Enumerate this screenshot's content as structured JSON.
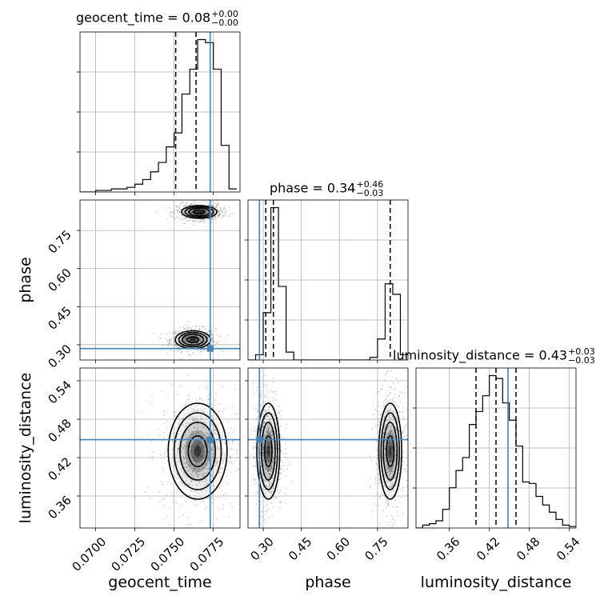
{
  "chart_data": {
    "type": "corner",
    "parameters": [
      "geocent_time",
      "phase",
      "luminosity_distance"
    ],
    "grid": true,
    "truth": {
      "geocent_time": 0.0773,
      "phase": 0.285,
      "luminosity_distance": 0.448,
      "color": "#4682b4"
    },
    "panels": {
      "geocent_time": {
        "title": {
          "name": "geocent_time",
          "value": "0.08",
          "plus": "+0.00",
          "minus": "−0.00"
        },
        "xlim": [
          0.069,
          0.0792
        ],
        "quantiles": [
          0.0751,
          0.0764,
          0.0773
        ],
        "hist_edges": [
          0.069,
          0.0695,
          0.07,
          0.0705,
          0.071,
          0.0715,
          0.072,
          0.0725,
          0.073,
          0.0735,
          0.074,
          0.0745,
          0.075,
          0.0755,
          0.076,
          0.0765,
          0.077,
          0.0775,
          0.078,
          0.0785,
          0.079
        ],
        "hist_counts": [
          0,
          0,
          1,
          1,
          2,
          2,
          3,
          5,
          8,
          13,
          19,
          29,
          38,
          63,
          79,
          98,
          96,
          79,
          30,
          2
        ]
      },
      "phase": {
        "title": {
          "name": "phase",
          "value": "0.34",
          "plus": "+0.46",
          "minus": "−0.03"
        },
        "xlim": [
          0.24,
          0.87
        ],
        "quantiles": [
          0.31,
          0.34,
          0.8
        ],
        "hist_edges": [
          0.24,
          0.27,
          0.3,
          0.33,
          0.36,
          0.39,
          0.42,
          0.45,
          0.48,
          0.51,
          0.54,
          0.57,
          0.6,
          0.63,
          0.66,
          0.69,
          0.72,
          0.75,
          0.78,
          0.81,
          0.84,
          0.87
        ],
        "hist_counts": [
          0,
          2,
          18,
          58,
          28,
          3,
          0,
          0,
          0,
          0,
          0,
          0,
          0,
          0,
          0,
          0,
          1,
          8,
          29,
          25,
          2
        ]
      },
      "luminosity_distance": {
        "title": {
          "name": "luminosity_distance",
          "value": "0.43",
          "plus": "+0.03",
          "minus": "−0.03"
        },
        "xlim": [
          0.31,
          0.55
        ],
        "quantiles": [
          0.4,
          0.43,
          0.46
        ],
        "hist_edges": [
          0.31,
          0.32,
          0.33,
          0.34,
          0.35,
          0.36,
          0.37,
          0.38,
          0.39,
          0.4,
          0.41,
          0.42,
          0.43,
          0.44,
          0.45,
          0.46,
          0.47,
          0.48,
          0.49,
          0.5,
          0.51,
          0.52,
          0.53,
          0.54,
          0.55
        ],
        "hist_counts": [
          0,
          2,
          3,
          5,
          13,
          28,
          40,
          49,
          72,
          81,
          92,
          106,
          104,
          87,
          75,
          57,
          32,
          31,
          22,
          16,
          11,
          6,
          2,
          1
        ]
      }
    },
    "axes": {
      "geocent_time": {
        "ticks": [
          0.07,
          0.0725,
          0.075,
          0.0775
        ],
        "tick_labels": [
          "0.0700",
          "0.0725",
          "0.0750",
          "0.0775"
        ],
        "label": "geocent_time"
      },
      "phase": {
        "ticks": [
          0.3,
          0.45,
          0.6,
          0.75
        ],
        "tick_labels": [
          "0.30",
          "0.45",
          "0.60",
          "0.75"
        ],
        "ylim": [
          0.24,
          0.87
        ],
        "label": "phase"
      },
      "luminosity_distance": {
        "ticks": [
          0.36,
          0.42,
          0.48,
          0.54
        ],
        "tick_labels": [
          "0.36",
          "0.42",
          "0.48",
          "0.54"
        ],
        "ylim": [
          0.31,
          0.56
        ],
        "label": "luminosity_distance"
      }
    },
    "contours": {
      "geocent_time_phase": [
        {
          "mode": [
            0.0762,
            0.32
          ],
          "sigma": [
            0.00045,
            0.014
          ],
          "rotate": 0
        },
        {
          "mode": [
            0.0766,
            0.823
          ],
          "sigma": [
            0.00045,
            0.01
          ],
          "rotate": 0
        }
      ],
      "geocent_time_luminosity_distance": [
        {
          "mode": [
            0.0765,
            0.43
          ],
          "sigma": [
            0.00075,
            0.03
          ],
          "rotate": 0
        }
      ],
      "phase_luminosity_distance": [
        {
          "mode": [
            0.32,
            0.43
          ],
          "sigma": [
            0.018,
            0.03
          ],
          "rotate": 0
        },
        {
          "mode": [
            0.8,
            0.43
          ],
          "sigma": [
            0.018,
            0.03
          ],
          "rotate": 0
        }
      ]
    }
  }
}
